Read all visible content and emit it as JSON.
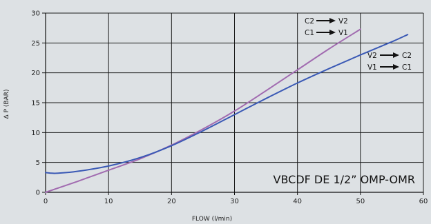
{
  "chart_data": {
    "type": "line",
    "xlabel": "FLOW  (l/min)",
    "ylabel": "Δ  P (BAR)",
    "xlim": [
      0,
      60
    ],
    "ylim": [
      0,
      30
    ],
    "xticks": [
      0,
      10,
      20,
      30,
      40,
      50,
      60
    ],
    "yticks": [
      0,
      5,
      10,
      15,
      20,
      25,
      30
    ],
    "grid": true,
    "annotations": {
      "model": "VBCDF DE 1/2” OMP-OMR",
      "legend_purple": {
        "from1": "C2",
        "to1": "V2",
        "from2": "C1",
        "to2": "V1"
      },
      "legend_blue": {
        "from1": "V2",
        "to1": "C2",
        "from2": "V1",
        "to2": "C1"
      }
    },
    "series": [
      {
        "color": "#a16bb0",
        "x": [
          0,
          5,
          10,
          15,
          20,
          25,
          30,
          35,
          40,
          45,
          50
        ],
        "y": [
          0,
          1.8,
          3.7,
          5.6,
          7.9,
          10.6,
          13.6,
          17.0,
          20.5,
          24.0,
          27.3
        ]
      },
      {
        "color": "#3a59b5",
        "x": [
          0,
          1,
          2,
          5,
          10,
          15,
          20,
          25,
          30,
          35,
          40,
          45,
          50,
          55,
          57.5
        ],
        "y": [
          3.3,
          3.2,
          3.2,
          3.5,
          4.4,
          5.8,
          7.8,
          10.3,
          13.0,
          15.7,
          18.3,
          20.7,
          23.0,
          25.2,
          26.4
        ]
      }
    ]
  }
}
